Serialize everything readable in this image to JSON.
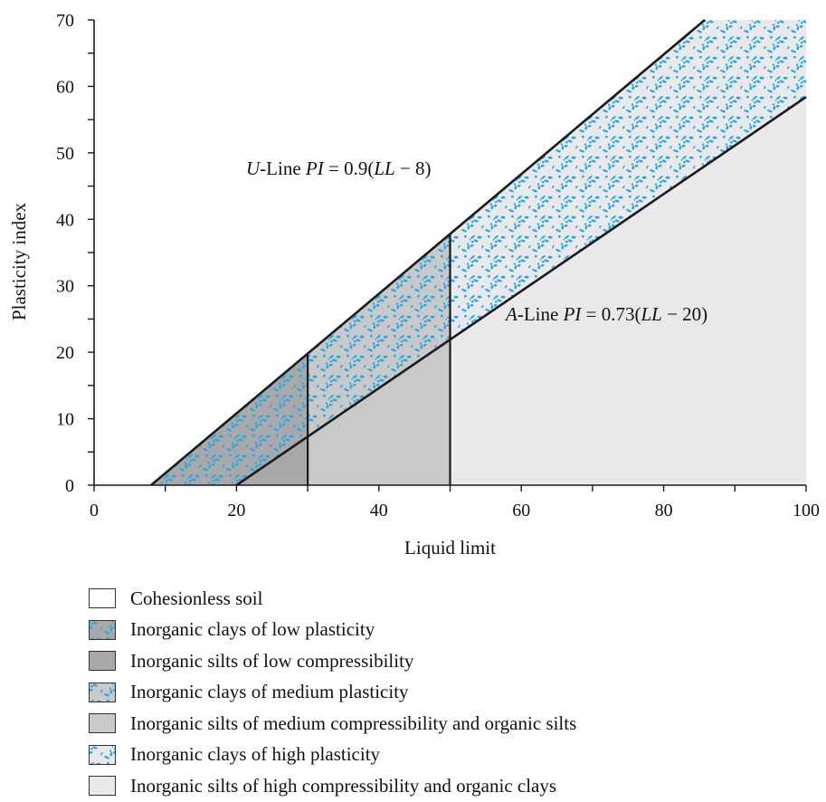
{
  "chart_data": {
    "type": "area",
    "title": "",
    "xlabel": "Liquid limit",
    "ylabel": "Plasticity index",
    "xlim": [
      0,
      100
    ],
    "ylim": [
      0,
      70
    ],
    "xticks": [
      "0",
      "20",
      "40",
      "60",
      "80",
      "100"
    ],
    "yticks": [
      "0",
      "10",
      "20",
      "30",
      "40",
      "50",
      "60",
      "70"
    ],
    "grid": false,
    "lines": [
      {
        "id": "u-line",
        "x_intercept": 8,
        "slope": 0.9
      },
      {
        "id": "a-line",
        "x_intercept": 20,
        "slope": 0.73
      }
    ],
    "liquid_limit_boundaries": [
      30,
      50
    ],
    "annotations": {
      "u_line": {
        "prefix": "U",
        "mid": "-Line ",
        "pi": "PI",
        "eq": " = 0.9(",
        "ll": "LL",
        "tail": " − 8)"
      },
      "a_line": {
        "prefix": "A",
        "mid": "-Line ",
        "pi": "PI",
        "eq": " = 0.73(",
        "ll": "LL",
        "tail": " − 20)"
      }
    },
    "regions": [
      {
        "label": "Cohesionless soil",
        "fill": "#ffffff",
        "pattern": false,
        "ll_range": null
      },
      {
        "label": "Inorganic clays of low plasticity",
        "fill": "#a9a9ab",
        "pattern": true,
        "ll_range": [
          0,
          30
        ],
        "between": "u-line/a-line"
      },
      {
        "label": "Inorganic silts of low compressibility",
        "fill": "#a9a9ab",
        "pattern": false,
        "ll_range": [
          0,
          30
        ],
        "between": "a-line/axis"
      },
      {
        "label": "Inorganic clays of medium plasticity",
        "fill": "#c9c9cb",
        "pattern": true,
        "ll_range": [
          30,
          50
        ],
        "between": "u-line/a-line"
      },
      {
        "label": "Inorganic silts of medium compressibility and organic silts",
        "fill": "#c9c9cb",
        "pattern": false,
        "ll_range": [
          30,
          50
        ],
        "between": "a-line/axis"
      },
      {
        "label": "Inorganic clays of high plasticity",
        "fill": "#e9e9eb",
        "pattern": true,
        "ll_range": [
          50,
          100
        ],
        "between": "u-line/a-line"
      },
      {
        "label": "Inorganic silts of high compressibility and organic clays",
        "fill": "#e9e9eb",
        "pattern": false,
        "ll_range": [
          50,
          100
        ],
        "between": "a-line/axis"
      }
    ],
    "dot_color": "#29a8e0",
    "line_color": "#1a1a1a"
  }
}
